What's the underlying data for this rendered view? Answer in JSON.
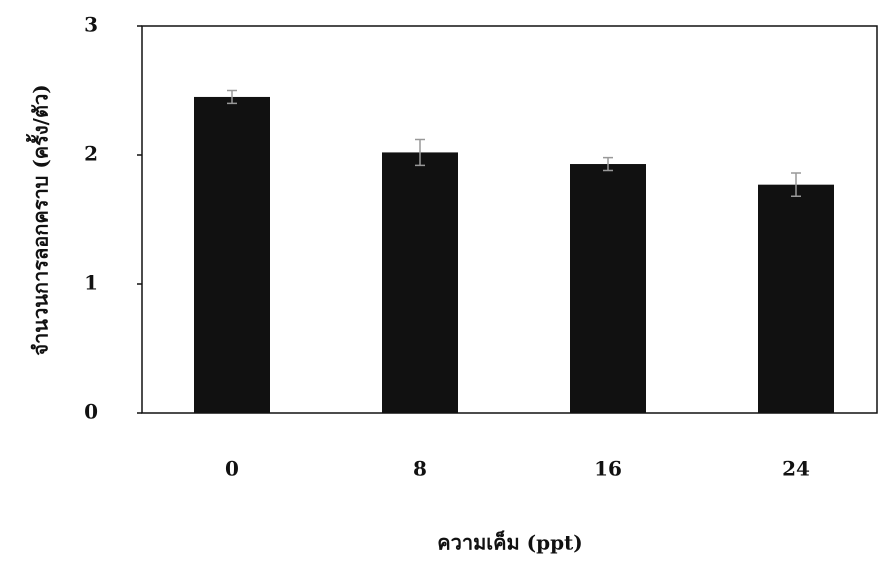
{
  "chart_data": {
    "type": "bar",
    "x_label": "ความเค็ม (ppt)",
    "y_label": "จำนวนการลอกคราบ (ครั้ง/ตัว)",
    "categories": [
      "0",
      "8",
      "16",
      "24"
    ],
    "values": [
      2.45,
      2.02,
      1.93,
      1.77
    ],
    "errors": [
      0.05,
      0.1,
      0.05,
      0.09
    ],
    "color": "#111111",
    "ylim": [
      0,
      3
    ],
    "yticks": [
      0,
      1,
      2,
      3
    ],
    "grid": false
  }
}
